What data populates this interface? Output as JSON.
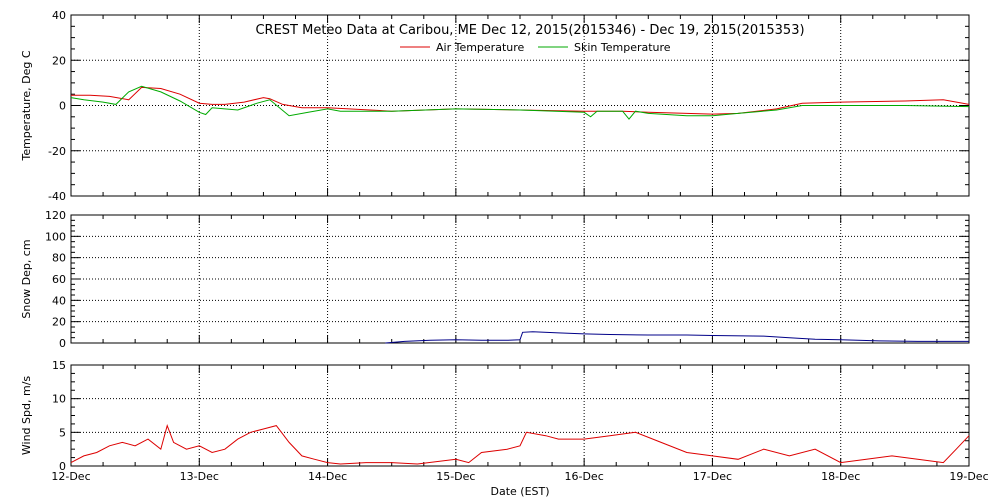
{
  "title": "CREST Meteo Data at Caribou, ME   Dec 12, 2015(2015346) - Dec 19, 2015(2015353)",
  "xlabel": "Date (EST)",
  "x_ticks": [
    "12-Dec",
    "13-Dec",
    "14-Dec",
    "15-Dec",
    "16-Dec",
    "17-Dec",
    "18-Dec",
    "19-Dec"
  ],
  "colors": {
    "air": "#dd0000",
    "skin": "#00aa00",
    "snow": "#000088",
    "wind": "#dd0000",
    "frame": "#000000"
  },
  "chart_data": [
    {
      "type": "line",
      "ylabel": "Temperature, Deg C",
      "ylim": [
        -40,
        40
      ],
      "y_ticks": [
        -40,
        -20,
        0,
        20,
        40
      ],
      "x_unit": "days since 12-Dec",
      "legend_placement": "top-center",
      "series": [
        {
          "name": "Air Temperature",
          "x": [
            0,
            0.15,
            0.3,
            0.45,
            0.55,
            0.7,
            0.85,
            1.0,
            1.1,
            1.2,
            1.35,
            1.5,
            1.55,
            1.65,
            1.8,
            2.0,
            2.5,
            3.0,
            3.5,
            4.0,
            4.3,
            4.5,
            4.8,
            5.0,
            5.2,
            5.5,
            5.7,
            6.0,
            6.5,
            6.8,
            7.0
          ],
          "y": [
            4.5,
            4.5,
            4.0,
            2.5,
            8.0,
            7.5,
            5.0,
            1.0,
            0.5,
            0.5,
            1.5,
            3.5,
            3.0,
            0.5,
            -1.0,
            -1.0,
            -2.5,
            -1.5,
            -2.0,
            -2.5,
            -2.5,
            -3.0,
            -3.5,
            -3.8,
            -3.5,
            -1.5,
            1.0,
            1.5,
            2.0,
            2.5,
            0.5
          ]
        },
        {
          "name": "Skin Temperature",
          "x": [
            0,
            0.1,
            0.25,
            0.35,
            0.45,
            0.55,
            0.7,
            0.85,
            1.0,
            1.05,
            1.1,
            1.2,
            1.3,
            1.45,
            1.55,
            1.7,
            1.85,
            2.0,
            2.1,
            2.5,
            3.0,
            3.5,
            4.0,
            4.05,
            4.1,
            4.3,
            4.35,
            4.4,
            4.5,
            4.8,
            5.0,
            5.2,
            5.5,
            5.7,
            6.0,
            6.5,
            7.0
          ],
          "y": [
            3.5,
            2.5,
            1.5,
            0.5,
            6.0,
            8.5,
            6.0,
            2.0,
            -3.0,
            -4.0,
            -1.0,
            -1.5,
            -2.0,
            1.0,
            2.5,
            -4.5,
            -3.0,
            -1.5,
            -2.5,
            -2.5,
            -1.5,
            -2.0,
            -3.0,
            -5.0,
            -2.5,
            -2.5,
            -6.0,
            -2.5,
            -3.5,
            -4.5,
            -4.5,
            -3.5,
            -2.0,
            0.0,
            0.0,
            0.0,
            -0.5
          ]
        }
      ]
    },
    {
      "type": "line",
      "ylabel": "Snow Dep, cm",
      "ylim": [
        0,
        120
      ],
      "y_ticks": [
        0,
        20,
        40,
        60,
        80,
        100,
        120
      ],
      "x_unit": "days since 12-Dec",
      "series": [
        {
          "name": "",
          "x": [
            2.45,
            2.6,
            2.8,
            3.0,
            3.2,
            3.4,
            3.5,
            3.52,
            3.6,
            3.8,
            4.0,
            4.2,
            4.5,
            4.8,
            5.0,
            5.4,
            5.6,
            5.8,
            6.0,
            6.3,
            6.6,
            7.0
          ],
          "y": [
            0.0,
            1.5,
            2.5,
            3.0,
            2.5,
            2.5,
            3.0,
            10.0,
            10.5,
            9.5,
            8.5,
            8.0,
            7.5,
            7.5,
            7.0,
            6.5,
            5.0,
            3.5,
            3.0,
            2.0,
            1.5,
            1.5
          ]
        }
      ]
    },
    {
      "type": "line",
      "ylabel": "Wind Spd, m/s",
      "ylim": [
        0,
        15
      ],
      "y_ticks": [
        0,
        5,
        10,
        15
      ],
      "x_unit": "days since 12-Dec",
      "series": [
        {
          "name": "",
          "x": [
            0,
            0.1,
            0.2,
            0.3,
            0.4,
            0.5,
            0.6,
            0.7,
            0.75,
            0.8,
            0.9,
            1.0,
            1.1,
            1.2,
            1.3,
            1.4,
            1.5,
            1.6,
            1.7,
            1.8,
            1.9,
            2.0,
            2.1,
            2.3,
            2.5,
            2.7,
            3.0,
            3.1,
            3.2,
            3.4,
            3.5,
            3.55,
            3.7,
            3.8,
            4.0,
            4.2,
            4.4,
            4.6,
            4.8,
            5.0,
            5.2,
            5.4,
            5.6,
            5.8,
            6.0,
            6.2,
            6.4,
            6.6,
            6.8,
            6.9,
            7.0
          ],
          "y": [
            0.5,
            1.5,
            2.0,
            3.0,
            3.5,
            3.0,
            4.0,
            2.5,
            6.0,
            3.5,
            2.5,
            3.0,
            2.0,
            2.5,
            4.0,
            5.0,
            5.5,
            6.0,
            3.5,
            1.5,
            1.0,
            0.5,
            0.3,
            0.5,
            0.5,
            0.3,
            1.0,
            0.5,
            2.0,
            2.5,
            3.0,
            5.0,
            4.5,
            4.0,
            4.0,
            4.5,
            5.0,
            3.5,
            2.0,
            1.5,
            1.0,
            2.5,
            1.5,
            2.5,
            0.5,
            1.0,
            1.5,
            1.0,
            0.5,
            2.5,
            4.5
          ]
        }
      ]
    }
  ]
}
